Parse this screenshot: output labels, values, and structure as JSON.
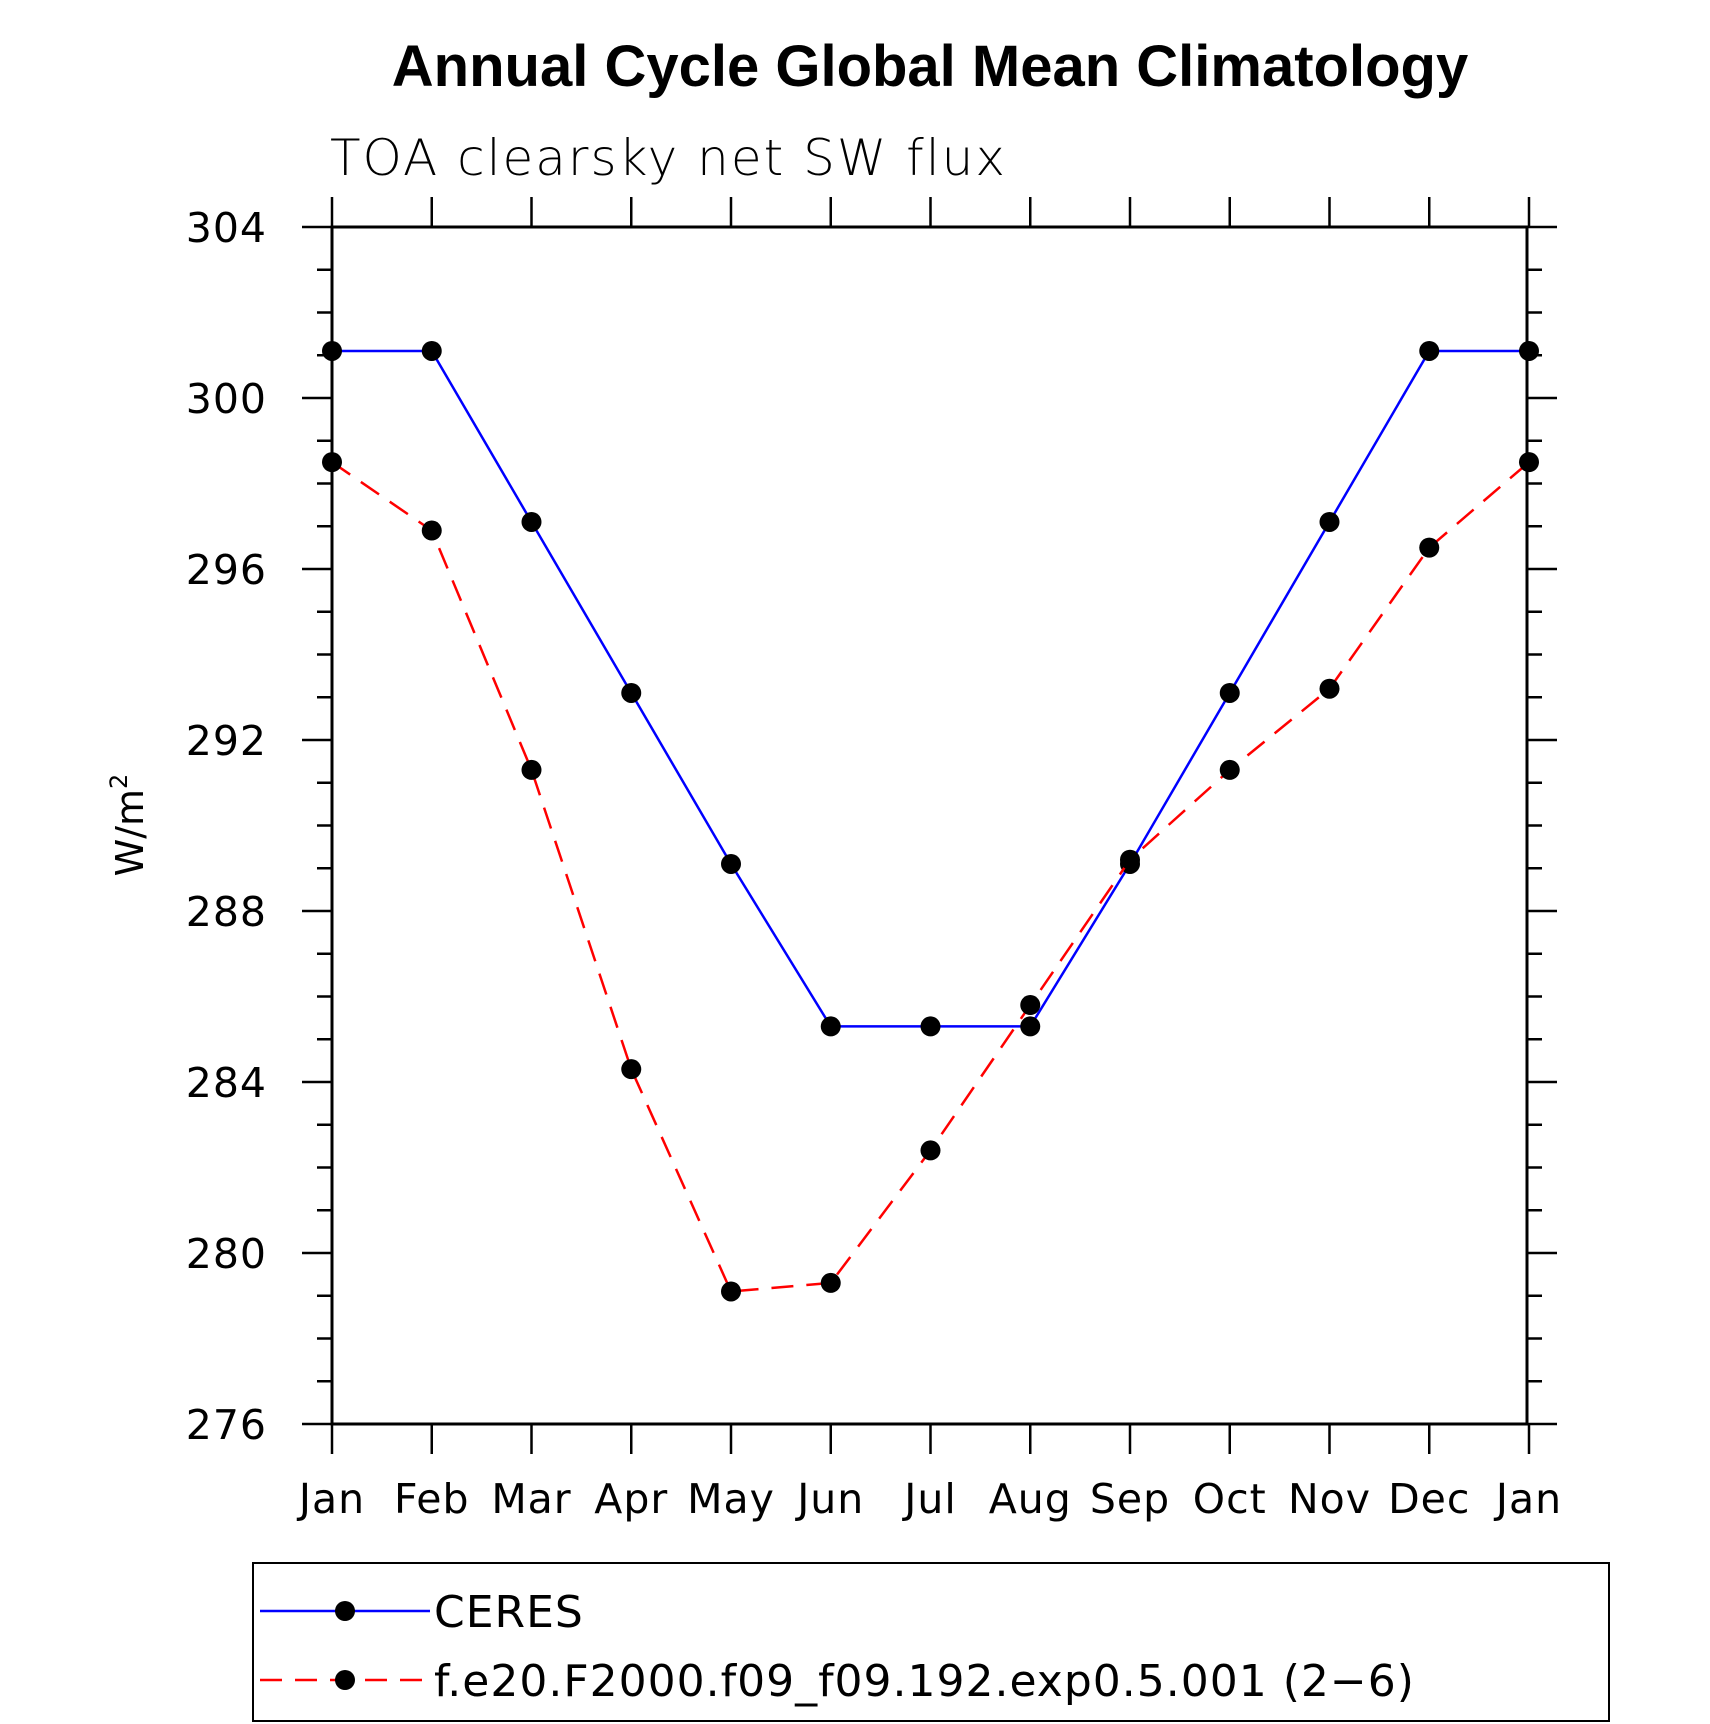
{
  "colors": {
    "ceres": "#0000ff",
    "model": "#ff0000",
    "marker": "#000000",
    "axis": "#000000"
  },
  "chart_data": {
    "type": "line",
    "title": "Annual Cycle Global Mean Climatology",
    "subtitle": "TOA clearsky net SW flux",
    "ylabel_base": "W/m",
    "ylabel_sup": "2",
    "xlabel": "",
    "ylim": [
      276,
      304
    ],
    "yticks": [
      "276",
      "280",
      "284",
      "288",
      "292",
      "296",
      "300",
      "304"
    ],
    "categories": [
      "Jan",
      "Feb",
      "Mar",
      "Apr",
      "May",
      "Jun",
      "Jul",
      "Aug",
      "Sep",
      "Oct",
      "Nov",
      "Dec",
      "Jan"
    ],
    "series": [
      {
        "name": "CERES",
        "style": "solid",
        "values": [
          301.1,
          301.1,
          297.1,
          293.1,
          289.1,
          285.3,
          285.3,
          285.3,
          289.1,
          293.1,
          297.1,
          301.1,
          301.1
        ]
      },
      {
        "name": "f.e20.F2000.f09_f09.192.exp0.5.001 (2−6)",
        "style": "dashed",
        "values": [
          298.5,
          296.9,
          291.3,
          284.3,
          279.1,
          279.3,
          282.4,
          285.8,
          289.2,
          291.3,
          293.2,
          296.5,
          298.5
        ]
      }
    ],
    "legend_position": "bottom"
  }
}
